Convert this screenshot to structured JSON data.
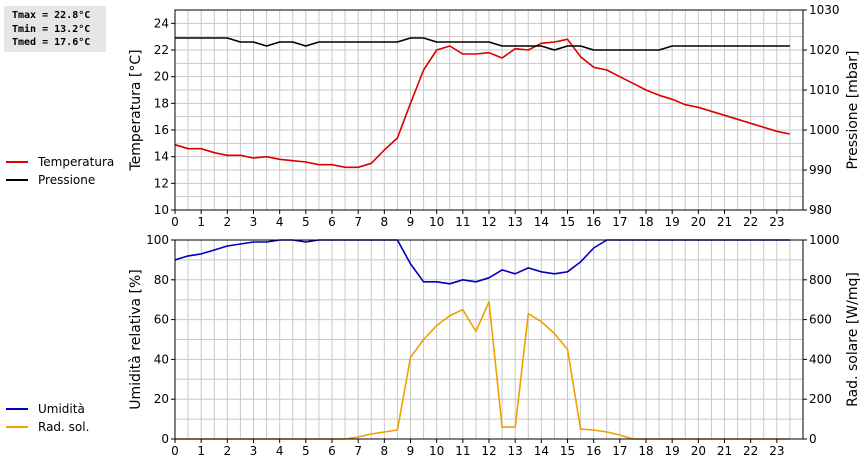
{
  "stats": {
    "tmax": "Tmax = 22.8°C",
    "tmin": "Tmin = 13.2°C",
    "tmed": "Tmed = 17.6°C"
  },
  "colors": {
    "temperature": "#dd0000",
    "pressure": "#000000",
    "humidity": "#0000bb",
    "radiation": "#f0a000",
    "grid": "#c8c8c8"
  },
  "chart_data": [
    {
      "type": "line",
      "x_ticks": [
        "0",
        "1",
        "2",
        "3",
        "4",
        "5",
        "6",
        "7",
        "8",
        "9",
        "10",
        "11",
        "12",
        "13",
        "14",
        "15",
        "16",
        "17",
        "18",
        "19",
        "20",
        "21",
        "22",
        "23"
      ],
      "xlim": [
        0,
        24
      ],
      "ylabel": "Temperatura [°C]",
      "ylim": [
        10,
        25
      ],
      "y_ticks": [
        "10",
        "12",
        "14",
        "16",
        "18",
        "20",
        "22",
        "24"
      ],
      "y2label": "Pressione [mbar]",
      "y2lim": [
        980,
        1030
      ],
      "y2_ticks": [
        "980",
        "990",
        "1000",
        "1010",
        "1020",
        "1030"
      ],
      "legend": [
        "Temperatura",
        "Pressione"
      ],
      "series": [
        {
          "name": "Temperatura",
          "axis": "left",
          "x": [
            0,
            0.5,
            1,
            1.5,
            2,
            2.5,
            3,
            3.5,
            4,
            4.5,
            5,
            5.5,
            6,
            6.5,
            7,
            7.5,
            8,
            8.5,
            9,
            9.5,
            10,
            10.5,
            11,
            11.5,
            12,
            12.5,
            13,
            13.5,
            14,
            14.5,
            15,
            15.5,
            16,
            16.5,
            17,
            17.5,
            18,
            18.5,
            19,
            19.5,
            20,
            20.5,
            21,
            21.5,
            22,
            22.5,
            23,
            23.5
          ],
          "values": [
            14.9,
            14.6,
            14.6,
            14.3,
            14.1,
            14.1,
            13.9,
            14.0,
            13.8,
            13.7,
            13.6,
            13.4,
            13.4,
            13.2,
            13.2,
            13.5,
            14.5,
            15.4,
            18.0,
            20.5,
            22.0,
            22.3,
            21.7,
            21.7,
            21.8,
            21.4,
            22.1,
            22.0,
            22.5,
            22.6,
            22.8,
            21.5,
            20.7,
            20.5,
            20.0,
            19.5,
            19.0,
            18.6,
            18.3,
            17.9,
            17.7,
            17.4,
            17.1,
            16.8,
            16.5,
            16.2,
            15.9,
            15.7
          ]
        },
        {
          "name": "Pressione",
          "axis": "right",
          "x": [
            0,
            0.5,
            1,
            1.5,
            2,
            2.5,
            3,
            3.5,
            4,
            4.5,
            5,
            5.5,
            6,
            6.5,
            7,
            7.5,
            8,
            8.5,
            9,
            9.5,
            10,
            10.5,
            11,
            11.5,
            12,
            12.5,
            13,
            13.5,
            14,
            14.5,
            15,
            15.5,
            16,
            16.5,
            17,
            17.5,
            18,
            18.5,
            19,
            19.5,
            20,
            20.5,
            21,
            21.5,
            22,
            22.5,
            23,
            23.5
          ],
          "values": [
            1023,
            1023,
            1023,
            1023,
            1023,
            1022,
            1022,
            1021,
            1022,
            1022,
            1021,
            1022,
            1022,
            1022,
            1022,
            1022,
            1022,
            1022,
            1023,
            1023,
            1022,
            1022,
            1022,
            1022,
            1022,
            1021,
            1021,
            1021,
            1021,
            1020,
            1021,
            1021,
            1020,
            1020,
            1020,
            1020,
            1020,
            1020,
            1021,
            1021,
            1021,
            1021,
            1021,
            1021,
            1021,
            1021,
            1021,
            1021
          ]
        }
      ]
    },
    {
      "type": "line",
      "x_ticks": [
        "0",
        "1",
        "2",
        "3",
        "4",
        "5",
        "6",
        "7",
        "8",
        "9",
        "10",
        "11",
        "12",
        "13",
        "14",
        "15",
        "16",
        "17",
        "18",
        "19",
        "20",
        "21",
        "22",
        "23"
      ],
      "xlim": [
        0,
        24
      ],
      "ylabel": "Umidità relativa [%]",
      "ylim": [
        0,
        100
      ],
      "y_ticks": [
        "0",
        "20",
        "40",
        "60",
        "80",
        "100"
      ],
      "y2label": "Rad. solare [W/mq]",
      "y2lim": [
        0,
        1000
      ],
      "y2_ticks": [
        "0",
        "200",
        "400",
        "600",
        "800",
        "1000"
      ],
      "legend": [
        "Umidità",
        "Rad. sol."
      ],
      "series": [
        {
          "name": "Umidità",
          "axis": "left",
          "x": [
            0,
            0.5,
            1,
            1.5,
            2,
            2.5,
            3,
            3.5,
            4,
            4.5,
            5,
            5.5,
            6,
            6.5,
            7,
            7.5,
            8,
            8.5,
            9,
            9.5,
            10,
            10.5,
            11,
            11.5,
            12,
            12.5,
            13,
            13.5,
            14,
            14.5,
            15,
            15.5,
            16,
            16.5,
            17,
            17.5,
            18,
            18.5,
            19,
            19.5,
            20,
            20.5,
            21,
            21.5,
            22,
            22.5,
            23,
            23.5
          ],
          "values": [
            90,
            92,
            93,
            95,
            97,
            98,
            99,
            99,
            100,
            100,
            99,
            100,
            100,
            100,
            100,
            100,
            100,
            100,
            88,
            79,
            79,
            78,
            80,
            79,
            81,
            85,
            83,
            86,
            84,
            83,
            84,
            89,
            96,
            100,
            100,
            100,
            100,
            100,
            100,
            100,
            100,
            100,
            100,
            100,
            100,
            100,
            100,
            100
          ]
        },
        {
          "name": "Rad. sol.",
          "axis": "right",
          "x": [
            0,
            0.5,
            1,
            1.5,
            2,
            2.5,
            3,
            3.5,
            4,
            4.5,
            5,
            5.5,
            6,
            6.5,
            7,
            7.5,
            8,
            8.5,
            9,
            9.5,
            10,
            10.5,
            11,
            11.5,
            12,
            12.5,
            13,
            13.5,
            14,
            14.5,
            15,
            15.5,
            16,
            16.5,
            17,
            17.5,
            18,
            18.5,
            19,
            19.5,
            20,
            20.5,
            21,
            21.5,
            22,
            22.5,
            23,
            23.5
          ],
          "values": [
            0,
            0,
            0,
            0,
            0,
            0,
            0,
            0,
            0,
            0,
            0,
            0,
            0,
            0,
            10,
            25,
            35,
            45,
            410,
            500,
            570,
            620,
            650,
            540,
            690,
            60,
            60,
            630,
            590,
            530,
            450,
            50,
            45,
            35,
            20,
            0,
            0,
            0,
            0,
            0,
            0,
            0,
            0,
            0,
            0,
            0,
            0,
            0
          ]
        }
      ]
    }
  ]
}
